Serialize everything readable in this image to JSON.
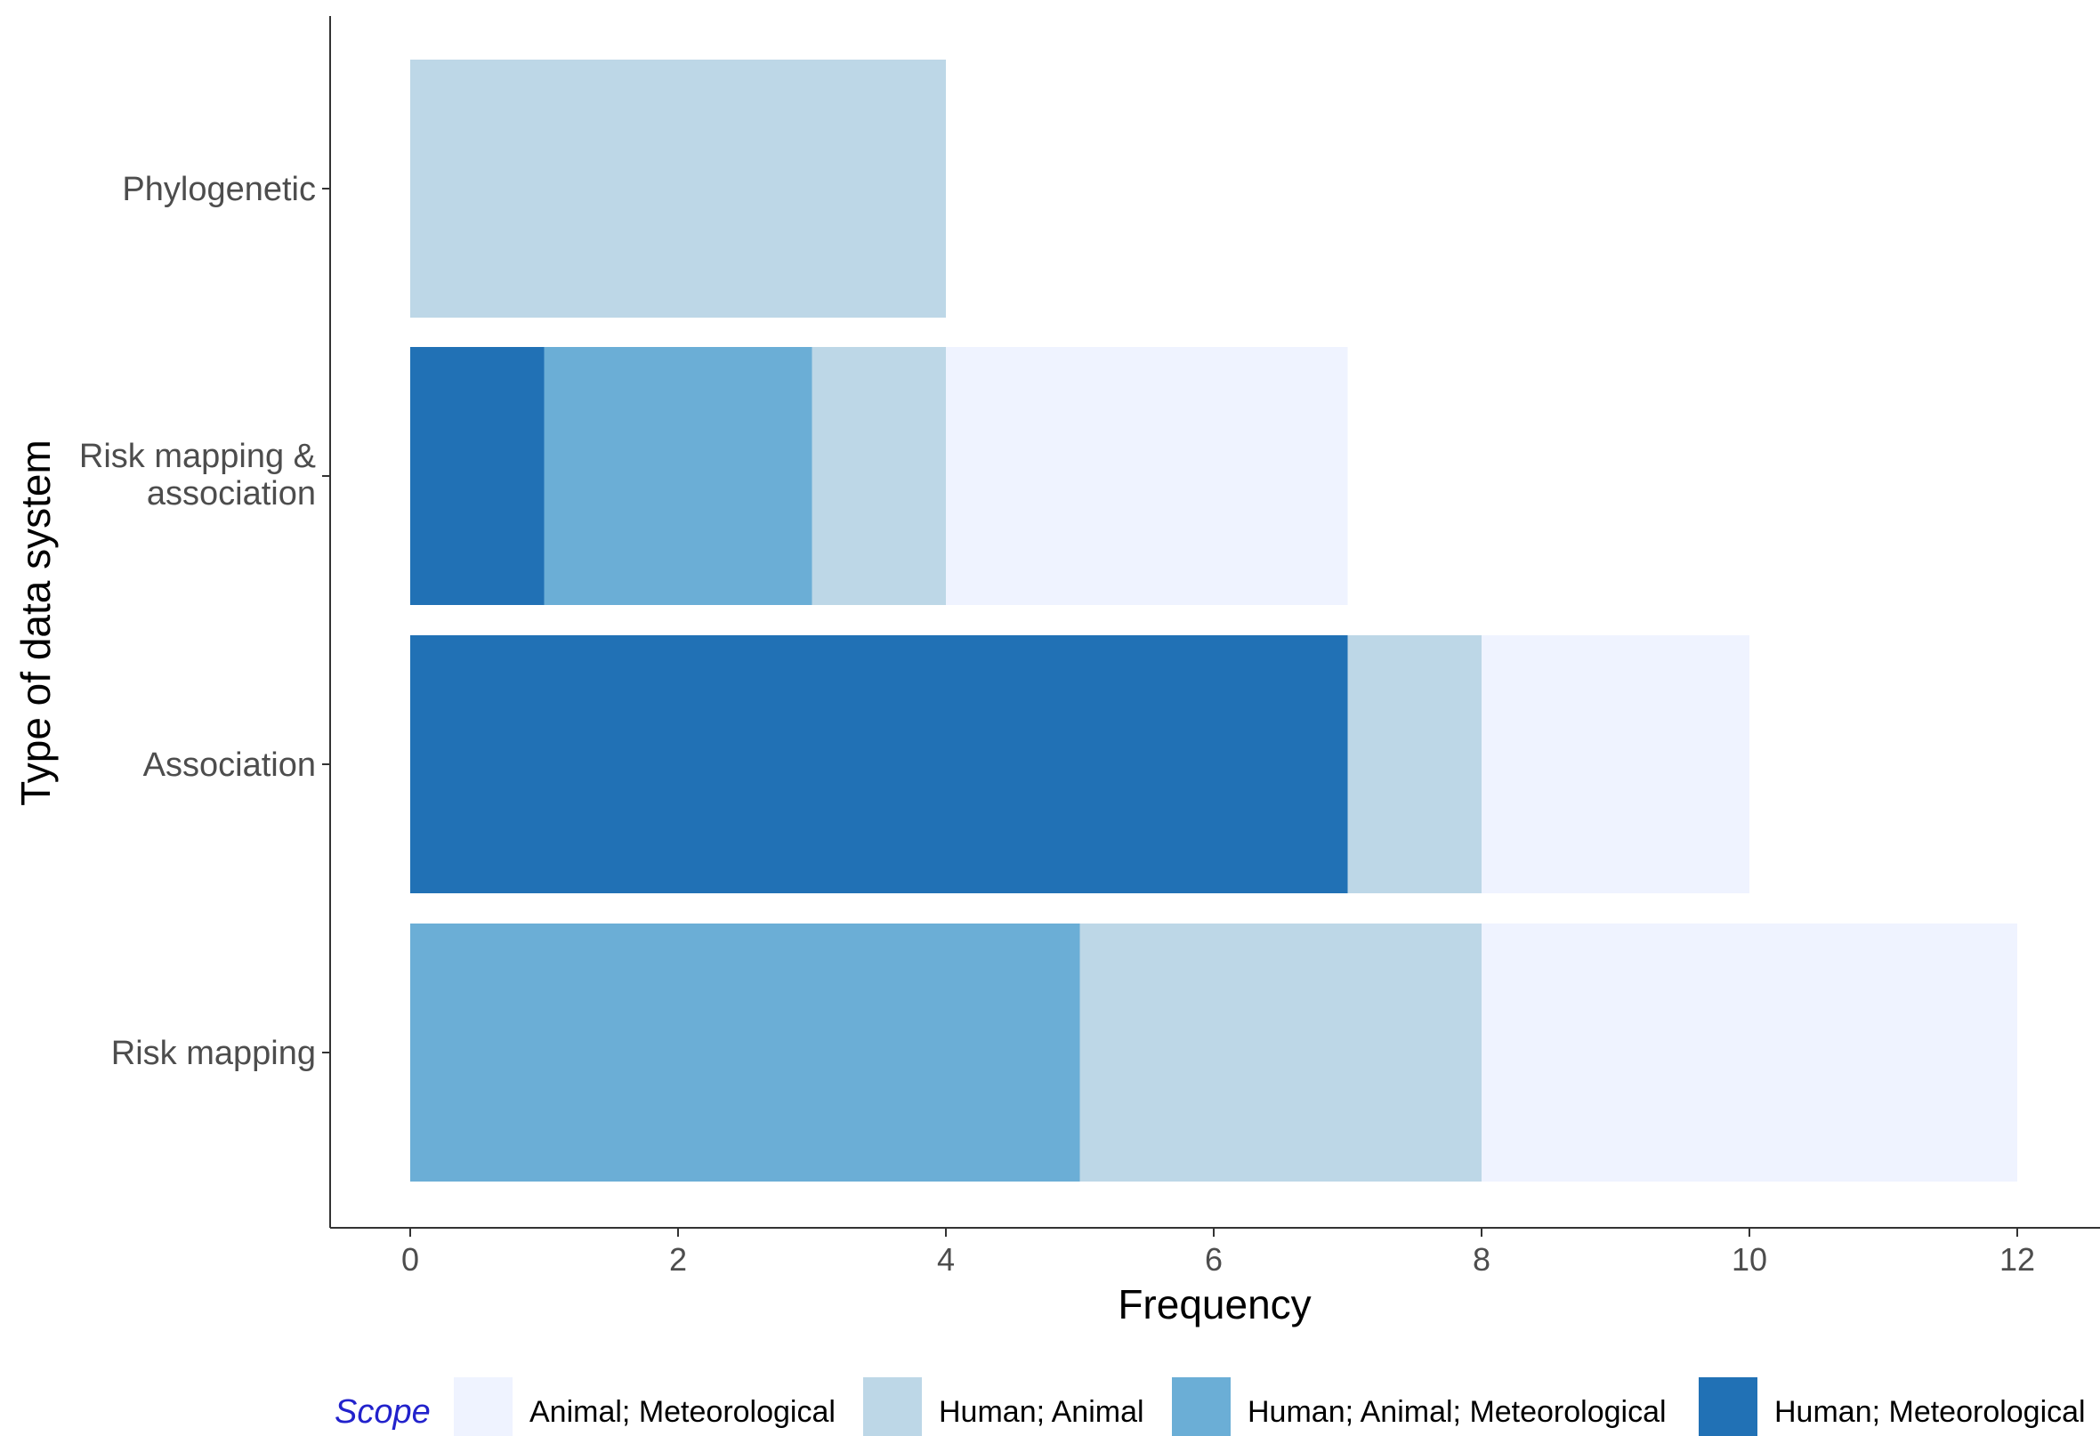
{
  "chart_data": {
    "type": "bar",
    "orientation": "horizontal",
    "stacked": true,
    "title": "",
    "xlabel": "Frequency",
    "ylabel": "Type of data system",
    "xlim": [
      0,
      12
    ],
    "xticks": [
      0,
      2,
      4,
      6,
      8,
      10,
      12
    ],
    "categories": [
      "Phylogenetic",
      "Risk mapping & association",
      "Association",
      "Risk mapping"
    ],
    "category_labels": [
      [
        "Phylogenetic"
      ],
      [
        "Risk mapping &",
        "association"
      ],
      [
        "Association"
      ],
      [
        "Risk mapping"
      ]
    ],
    "series": [
      {
        "name": "Human; Meteorological",
        "color": "#2171b5",
        "values": [
          0,
          1,
          7,
          0
        ]
      },
      {
        "name": "Human; Animal; Meteorological",
        "color": "#6baed6",
        "values": [
          0,
          2,
          0,
          5
        ]
      },
      {
        "name": "Human; Animal",
        "color": "#bdd7e7",
        "values": [
          4,
          1,
          1,
          3
        ]
      },
      {
        "name": "Animal; Meteorological",
        "color": "#eff3ff",
        "values": [
          0,
          3,
          2,
          4
        ]
      }
    ],
    "legend": {
      "title": "Scope",
      "position": "bottom",
      "order": [
        "Animal; Meteorological",
        "Human; Animal",
        "Human; Animal; Meteorological",
        "Human; Meteorological"
      ]
    },
    "grid": false
  }
}
